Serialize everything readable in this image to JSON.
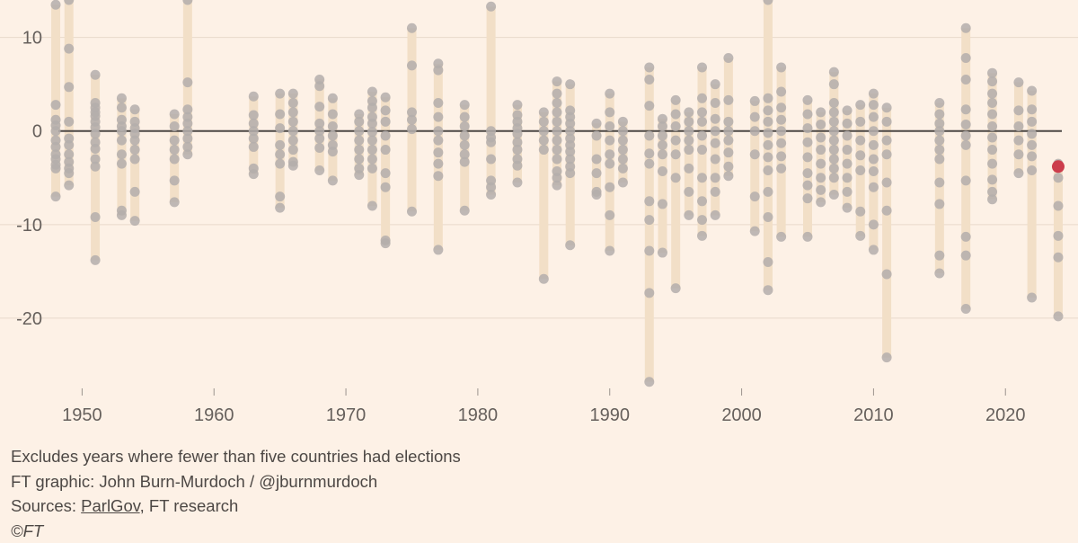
{
  "chart_data": {
    "type": "scatter",
    "title": "",
    "xlabel": "",
    "ylabel": "",
    "xlim": [
      1946.5,
      2025.5
    ],
    "ylim": [
      -27.5,
      14
    ],
    "yticks": [
      10,
      0,
      -10,
      -20
    ],
    "ytick_labels": [
      "10",
      "0",
      "-10",
      "-20"
    ],
    "xticks": [
      1950,
      1960,
      1970,
      1980,
      1990,
      2000,
      2010,
      2020
    ],
    "xtick_labels": [
      "1950",
      "1960",
      "1970",
      "1980",
      "1990",
      "2000",
      "2010",
      "2020"
    ],
    "grid": true,
    "colors": {
      "background": "#fdf1e6",
      "dot": "#b4aeab",
      "range_bar": "#f2dfc7",
      "zero_line": "#4d4845",
      "gridline": "#e8d9cb",
      "highlight": "#cc3d4c"
    },
    "years": [
      {
        "year": 1948,
        "values": [
          13.5,
          2.8,
          1.2,
          0.6,
          0,
          -1,
          -1.7,
          -2.5,
          -3,
          -3.6,
          -4,
          -7
        ]
      },
      {
        "year": 1949,
        "values": [
          14,
          8.8,
          4.7,
          1,
          -0.8,
          -1.5,
          -2.5,
          -3.3,
          -4,
          -4.5,
          -5.8
        ]
      },
      {
        "year": 1951,
        "values": [
          6,
          3,
          2.5,
          2,
          1.6,
          1,
          0.4,
          -0.3,
          -1.2,
          -1.9,
          -3,
          -3.8,
          -9.2,
          -13.8
        ]
      },
      {
        "year": 1953,
        "values": [
          3.5,
          2.5,
          1.2,
          0.5,
          0,
          -1,
          -2.5,
          -3.5,
          -8.5,
          -9
        ]
      },
      {
        "year": 1954,
        "values": [
          2.3,
          1,
          0.3,
          -0.3,
          -1,
          -2,
          -3,
          -6.5,
          -9.6
        ]
      },
      {
        "year": 1957,
        "values": [
          1.8,
          0.5,
          -1,
          -2,
          -3,
          -5.3,
          -7.6
        ]
      },
      {
        "year": 1958,
        "values": [
          14,
          5.2,
          2.3,
          1.5,
          0.8,
          0,
          -0.8,
          -1.7,
          -2.5
        ]
      },
      {
        "year": 1963,
        "values": [
          3.7,
          1.7,
          0.8,
          0,
          -0.8,
          -1.7,
          -4,
          -4.6
        ]
      },
      {
        "year": 1965,
        "values": [
          4,
          1.8,
          0.3,
          -1.5,
          -2.5,
          -3.5,
          -7,
          -8.2
        ]
      },
      {
        "year": 1966,
        "values": [
          4,
          3,
          2,
          1,
          0,
          -1,
          -2,
          -3.3,
          -3.7
        ]
      },
      {
        "year": 1968,
        "values": [
          5.5,
          4.8,
          2.6,
          0.8,
          0,
          -0.8,
          -1.8,
          -4.2
        ]
      },
      {
        "year": 1969,
        "values": [
          3.5,
          1.8,
          0.5,
          -0.5,
          -1.5,
          -2.2,
          -5.3
        ]
      },
      {
        "year": 1971,
        "values": [
          1.8,
          1,
          0,
          -1,
          -2,
          -3,
          -4,
          -4.7
        ]
      },
      {
        "year": 1972,
        "values": [
          4.2,
          3.2,
          2.5,
          1.5,
          0.8,
          -0.1,
          -1,
          -2,
          -3,
          -4,
          -8
        ]
      },
      {
        "year": 1973,
        "values": [
          3.6,
          2.2,
          1,
          -0.5,
          -2,
          -4.5,
          -6,
          -11.7,
          -12
        ]
      },
      {
        "year": 1975,
        "values": [
          11,
          7,
          2,
          1.2,
          0.2,
          -8.6
        ]
      },
      {
        "year": 1977,
        "values": [
          7.2,
          6.5,
          3,
          1.5,
          0,
          -1,
          -2.3,
          -3.5,
          -4.8,
          -12.7
        ]
      },
      {
        "year": 1979,
        "values": [
          2.8,
          1.5,
          0.5,
          -0.5,
          -1.5,
          -2.5,
          -3.3,
          -8.5
        ]
      },
      {
        "year": 1981,
        "values": [
          13.3,
          0,
          -0.7,
          -1.2,
          -3,
          -5.3,
          -6,
          -6.8
        ]
      },
      {
        "year": 1983,
        "values": [
          2.8,
          1.7,
          1,
          0.3,
          -0.3,
          -1.2,
          -2,
          -3,
          -3.7,
          -5.5
        ]
      },
      {
        "year": 1985,
        "values": [
          2,
          1,
          0,
          -1,
          -2,
          -15.8
        ]
      },
      {
        "year": 1986,
        "values": [
          5.3,
          4,
          3,
          2,
          1,
          0,
          -1,
          -2,
          -3,
          -4.3,
          -5,
          -5.8
        ]
      },
      {
        "year": 1987,
        "values": [
          5,
          2.2,
          1.5,
          0.8,
          0,
          -0.8,
          -1.5,
          -2.2,
          -3,
          -3.8,
          -4.5,
          -12.2
        ]
      },
      {
        "year": 1989,
        "values": [
          0.8,
          -0.5,
          -3,
          -4.5,
          -6.5,
          -6.8
        ]
      },
      {
        "year": 1990,
        "values": [
          4,
          2,
          0.5,
          -1,
          -2.5,
          -3.5,
          -6,
          -9,
          -12.8
        ]
      },
      {
        "year": 1991,
        "values": [
          1,
          0,
          -1,
          -2,
          -3,
          -4,
          -5.5
        ]
      },
      {
        "year": 1993,
        "values": [
          6.8,
          5.5,
          2.7,
          -0.5,
          -2.4,
          -3.5,
          -7.5,
          -9.5,
          -12.8,
          -17.3,
          -26.8
        ]
      },
      {
        "year": 1994,
        "values": [
          1.3,
          0.5,
          -0.5,
          -1.5,
          -2.5,
          -4.3,
          -7.8,
          -13
        ]
      },
      {
        "year": 1995,
        "values": [
          3.3,
          1.8,
          0.5,
          -1,
          -2.5,
          -5,
          -16.8
        ]
      },
      {
        "year": 1996,
        "values": [
          2,
          1,
          0,
          -1,
          -2,
          -4,
          -6.5,
          -9
        ]
      },
      {
        "year": 1997,
        "values": [
          6.8,
          3.5,
          2,
          1,
          -0.5,
          -2,
          -5,
          -7.5,
          -9.5,
          -11.2
        ]
      },
      {
        "year": 1998,
        "values": [
          5,
          3,
          1.3,
          0,
          -1.3,
          -3,
          -5,
          -6.5,
          -9
        ]
      },
      {
        "year": 1999,
        "values": [
          7.8,
          3.3,
          1,
          0,
          -1,
          -2.3,
          -3.8,
          -4.8
        ]
      },
      {
        "year": 2001,
        "values": [
          3.2,
          1.5,
          0,
          -2.5,
          -7,
          -10.7
        ]
      },
      {
        "year": 2002,
        "values": [
          14,
          3.5,
          2.2,
          1,
          -0.2,
          -1.5,
          -2.8,
          -4.2,
          -6.5,
          -9.2,
          -14,
          -17
        ]
      },
      {
        "year": 2003,
        "values": [
          6.8,
          4.2,
          2.5,
          1.2,
          0,
          -1.3,
          -2.7,
          -4,
          -11.3
        ]
      },
      {
        "year": 2005,
        "values": [
          3.3,
          1.8,
          0.3,
          -1.2,
          -2.8,
          -4.5,
          -5.8,
          -7.2,
          -11.3
        ]
      },
      {
        "year": 2006,
        "values": [
          2,
          0.7,
          -0.7,
          -2,
          -3.5,
          -5,
          -6.3,
          -7.6
        ]
      },
      {
        "year": 2007,
        "values": [
          6.3,
          5,
          3,
          2,
          1,
          0,
          -1,
          -2,
          -3,
          -4,
          -5,
          -6.8
        ]
      },
      {
        "year": 2008,
        "values": [
          2.2,
          0.8,
          -0.5,
          -2,
          -3.5,
          -5,
          -6.5,
          -8.2
        ]
      },
      {
        "year": 2009,
        "values": [
          2.8,
          1,
          -1,
          -2.6,
          -4.2,
          -8.6,
          -11.2
        ]
      },
      {
        "year": 2010,
        "values": [
          4,
          2.8,
          1.5,
          0,
          -1.5,
          -3,
          -4.3,
          -6,
          -10,
          -12.7
        ]
      },
      {
        "year": 2011,
        "values": [
          2.5,
          1,
          -1,
          -2.5,
          -5.5,
          -8.5,
          -15.3,
          -24.2
        ]
      },
      {
        "year": 2015,
        "values": [
          3,
          1.8,
          0.8,
          0,
          -1,
          -2,
          -3,
          -5.5,
          -7.8,
          -13.3,
          -15.2
        ]
      },
      {
        "year": 2017,
        "values": [
          11,
          7.8,
          5.5,
          2.3,
          0.7,
          -0.5,
          -1.5,
          -5.3,
          -11.3,
          -13.3,
          -19
        ]
      },
      {
        "year": 2019,
        "values": [
          6.2,
          5.3,
          4,
          3,
          1.8,
          0.5,
          -0.7,
          -2,
          -3.5,
          -5.2,
          -6.5,
          -7.3
        ]
      },
      {
        "year": 2021,
        "values": [
          5.2,
          2.2,
          0.5,
          -1,
          -2.5,
          -4.5
        ]
      },
      {
        "year": 2022,
        "values": [
          4.3,
          2.3,
          1,
          -0.3,
          -1.5,
          -2.7,
          -4.2,
          -17.8
        ]
      },
      {
        "year": 2024,
        "values": [
          -3.5,
          -5,
          -8,
          -11.2,
          -13.5,
          -19.8
        ],
        "highlight": -3.8
      }
    ]
  },
  "footer": {
    "note": "Excludes years where fewer than five countries had elections",
    "credit": "FT graphic: John Burn-Murdoch / @jburnmurdoch",
    "sources_prefix": "Sources: ",
    "sources_link": "ParlGov",
    "sources_suffix": ", FT research",
    "copyright": "©FT"
  }
}
